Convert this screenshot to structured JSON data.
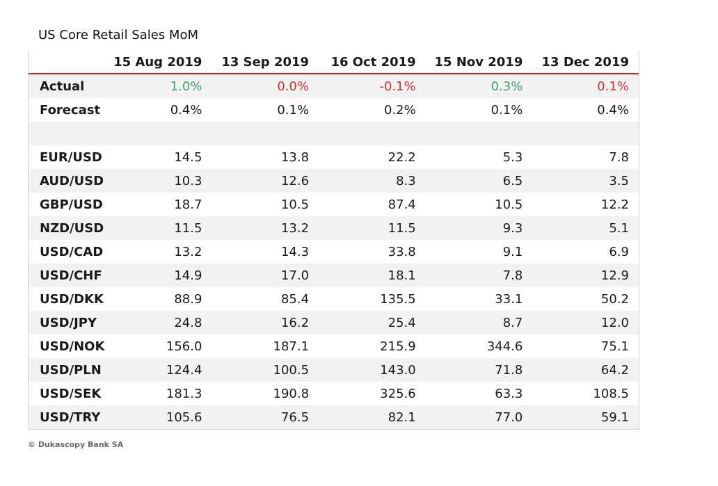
{
  "title": "US Core Retail Sales MoM",
  "footer": "© Dukascopy Bank SA",
  "colors": {
    "positive": "#3aa56b",
    "negative": "#d32f2f",
    "header_rule": "#c62828"
  },
  "chart_data": {
    "type": "table",
    "title": "US Core Retail Sales MoM",
    "columns": [
      "15 Aug 2019",
      "13 Sep 2019",
      "16 Oct 2019",
      "15 Nov 2019",
      "13 Dec 2019"
    ],
    "actual": {
      "label": "Actual",
      "values": [
        "1.0%",
        "0.0%",
        "-0.1%",
        "0.3%",
        "0.1%"
      ],
      "tones": [
        "pos",
        "neg",
        "neg",
        "pos",
        "neg"
      ]
    },
    "forecast": {
      "label": "Forecast",
      "values": [
        "0.4%",
        "0.1%",
        "0.2%",
        "0.1%",
        "0.4%"
      ]
    },
    "pairs": [
      {
        "label": "EUR/USD",
        "values": [
          "14.5",
          "13.8",
          "22.2",
          "5.3",
          "7.8"
        ]
      },
      {
        "label": "AUD/USD",
        "values": [
          "10.3",
          "12.6",
          "8.3",
          "6.5",
          "3.5"
        ]
      },
      {
        "label": "GBP/USD",
        "values": [
          "18.7",
          "10.5",
          "87.4",
          "10.5",
          "12.2"
        ]
      },
      {
        "label": "NZD/USD",
        "values": [
          "11.5",
          "13.2",
          "11.5",
          "9.3",
          "5.1"
        ]
      },
      {
        "label": "USD/CAD",
        "values": [
          "13.2",
          "14.3",
          "33.8",
          "9.1",
          "6.9"
        ]
      },
      {
        "label": "USD/CHF",
        "values": [
          "14.9",
          "17.0",
          "18.1",
          "7.8",
          "12.9"
        ]
      },
      {
        "label": "USD/DKK",
        "values": [
          "88.9",
          "85.4",
          "135.5",
          "33.1",
          "50.2"
        ]
      },
      {
        "label": "USD/JPY",
        "values": [
          "24.8",
          "16.2",
          "25.4",
          "8.7",
          "12.0"
        ]
      },
      {
        "label": "USD/NOK",
        "values": [
          "156.0",
          "187.1",
          "215.9",
          "344.6",
          "75.1"
        ]
      },
      {
        "label": "USD/PLN",
        "values": [
          "124.4",
          "100.5",
          "143.0",
          "71.8",
          "64.2"
        ]
      },
      {
        "label": "USD/SEK",
        "values": [
          "181.3",
          "190.8",
          "325.6",
          "63.3",
          "108.5"
        ]
      },
      {
        "label": "USD/TRY",
        "values": [
          "105.6",
          "76.5",
          "82.1",
          "77.0",
          "59.1"
        ]
      }
    ]
  }
}
